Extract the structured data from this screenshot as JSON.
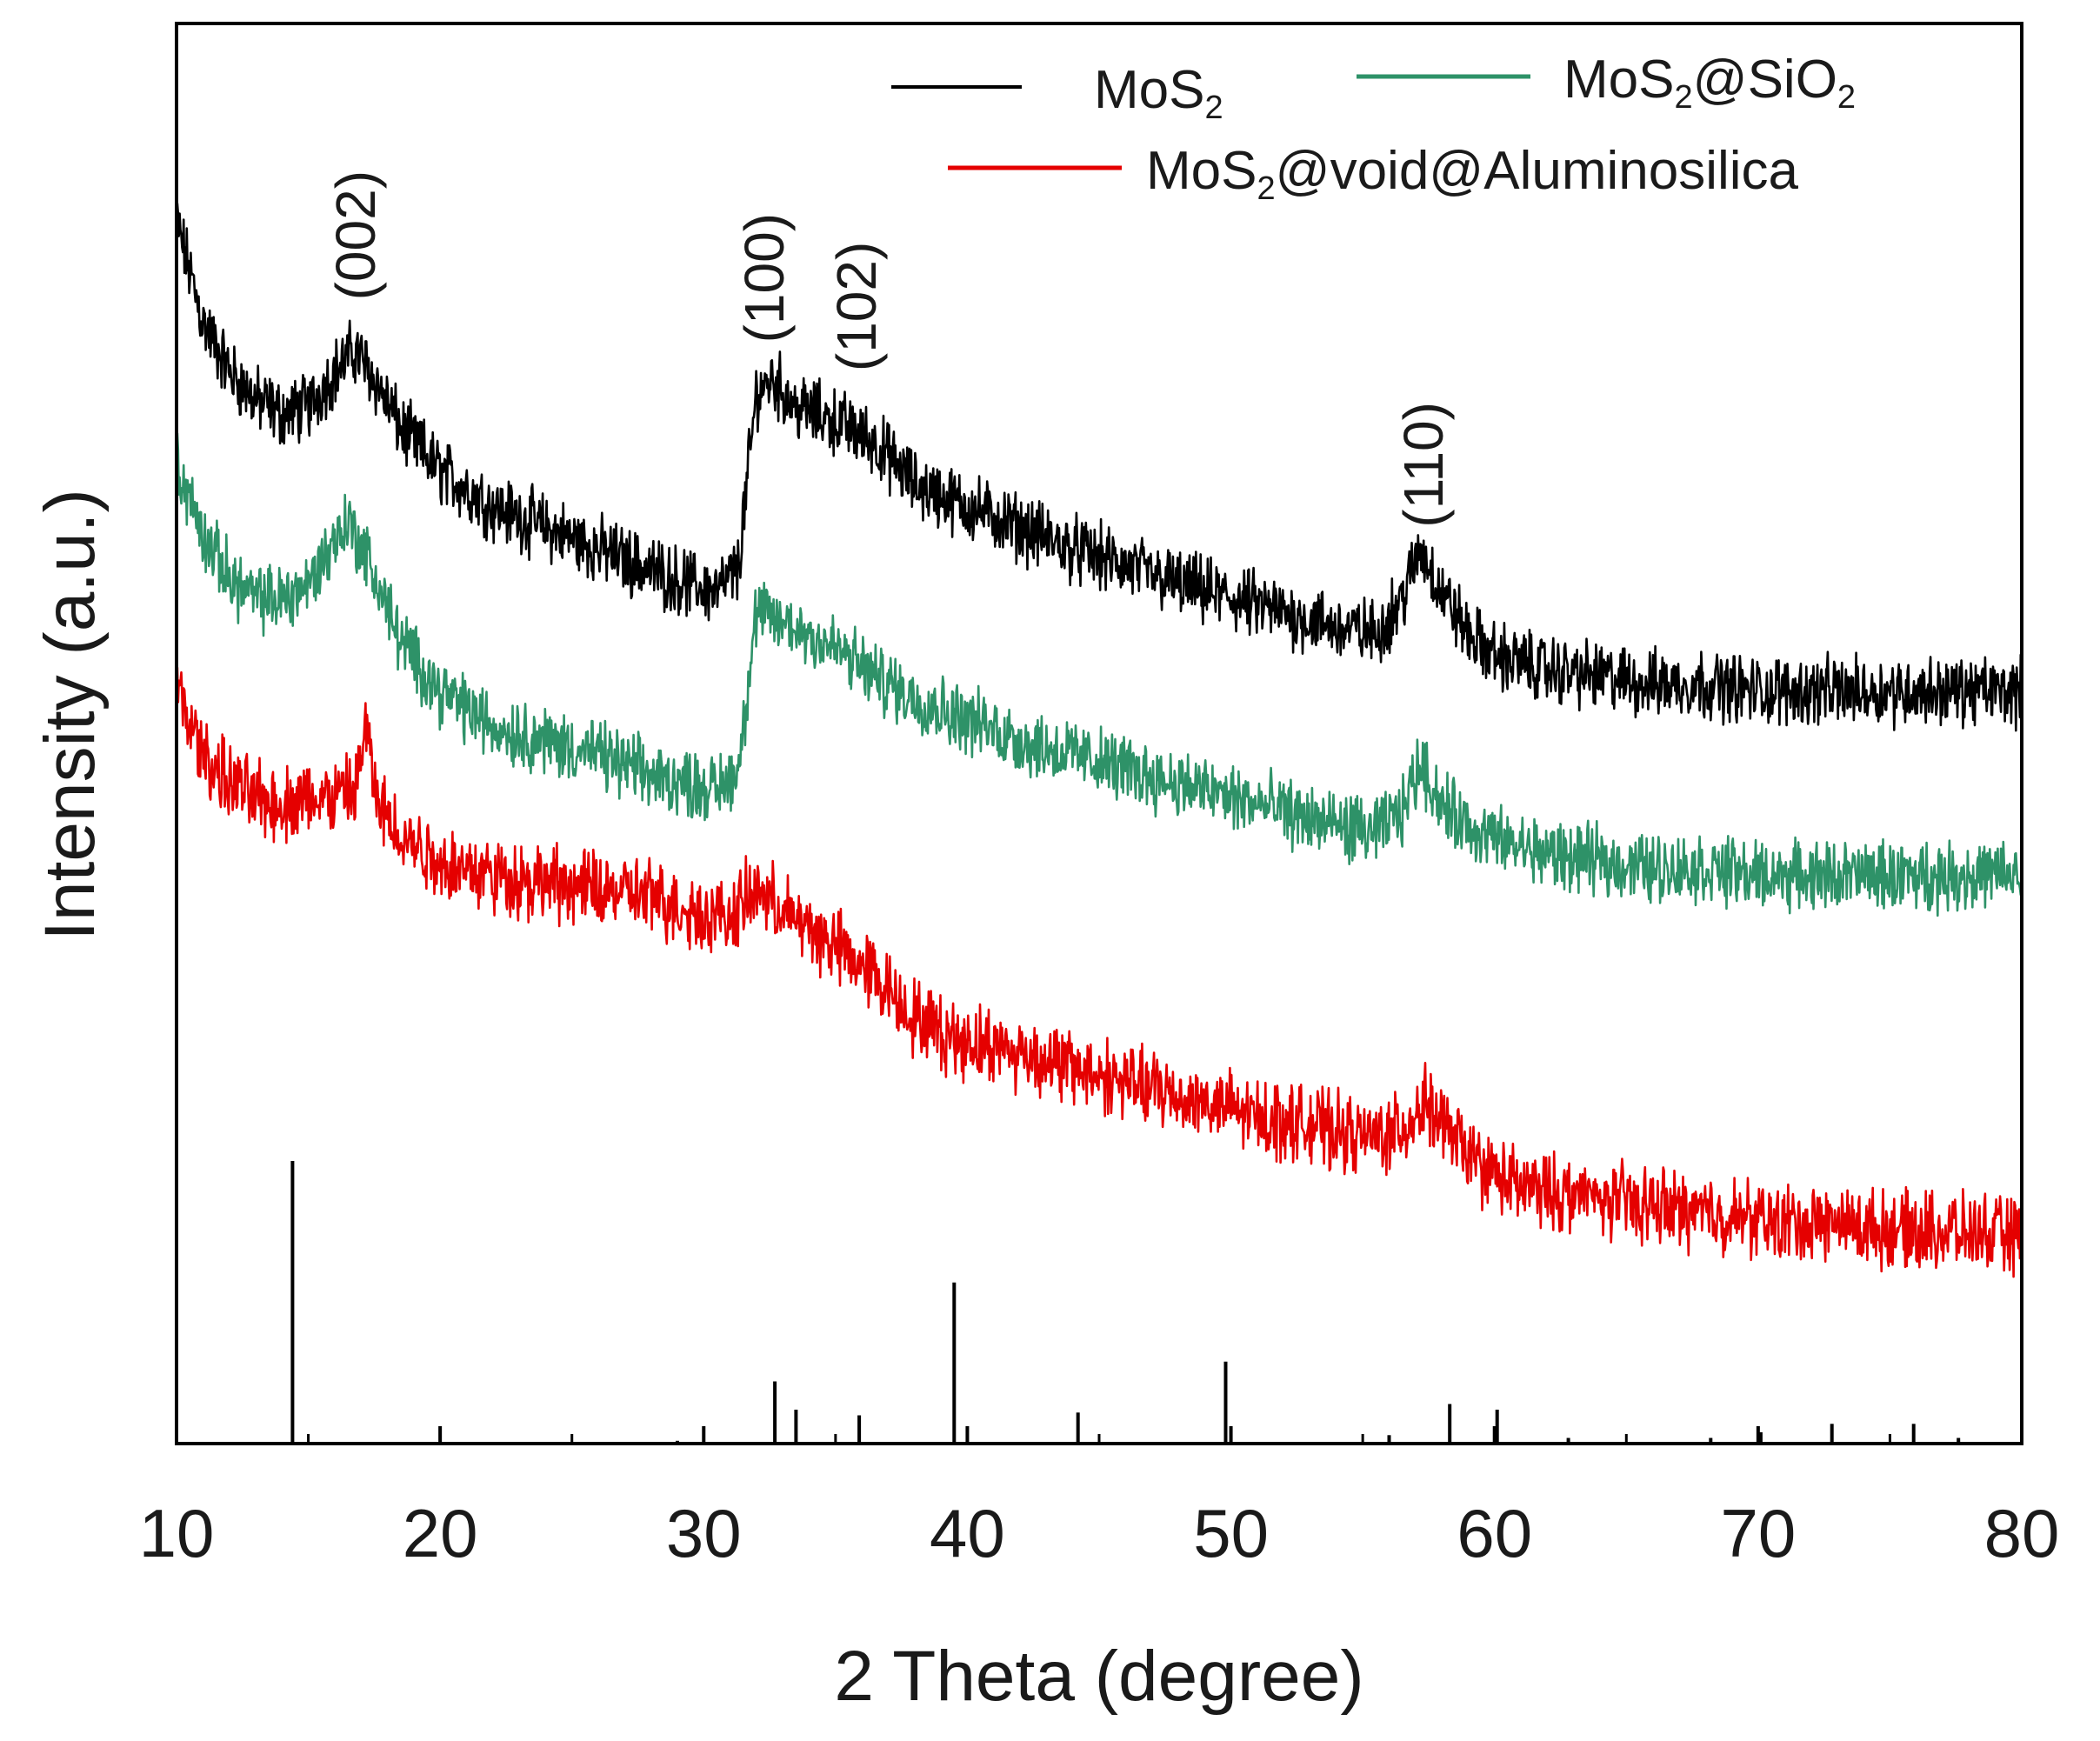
{
  "chart_data": {
    "type": "line",
    "xlabel": "2 Theta (degree)",
    "ylabel": "Intensity (a.u.)",
    "xlim": [
      10,
      80
    ],
    "xticks": [
      "10",
      "20",
      "30",
      "40",
      "50",
      "60",
      "70",
      "80"
    ],
    "y_ticks_shown": false,
    "legend_position": "top-right",
    "legend": [
      {
        "series": 0,
        "base": "MoS",
        "sub1": "2",
        "mid": "",
        "sub2": ""
      },
      {
        "series": 1,
        "base": "MoS",
        "sub1": "2",
        "mid": "@SiO",
        "sub2": "2"
      },
      {
        "series": 2,
        "base": "MoS",
        "sub1": "2",
        "mid": "@void@Aluminosilica",
        "sub2": ""
      }
    ],
    "series": [
      {
        "name": "MoS2",
        "color": "#000000",
        "x": [
          10,
          11,
          12,
          13,
          14,
          15,
          16,
          16.8,
          17.5,
          18.5,
          20,
          22,
          24,
          26,
          28,
          29.5,
          30.5,
          31.3,
          32.0,
          32.6,
          33.5,
          35.0,
          36.5,
          38,
          40,
          42,
          44,
          46,
          48,
          50,
          52,
          54,
          55.5,
          56.5,
          57.2,
          58.0,
          59,
          60,
          62,
          64,
          66,
          68,
          70,
          72,
          74,
          76,
          78,
          80
        ],
        "y": [
          86.0,
          79.0,
          75.5,
          73.5,
          72.5,
          73.0,
          75.5,
          77.0,
          75.0,
          71.5,
          68.5,
          66.0,
          64.5,
          63.0,
          61.5,
          60.5,
          60.0,
          61.5,
          74.0,
          75.0,
          73.0,
          72.0,
          70.5,
          67.5,
          66.0,
          64.5,
          63.0,
          61.8,
          60.5,
          59.5,
          58.5,
          57.5,
          57.0,
          59.5,
          63.0,
          60.0,
          57.0,
          55.5,
          54.5,
          54.0,
          53.5,
          53.5,
          53.0,
          53.0,
          53.0,
          53.0,
          53.0,
          53.0
        ],
        "noise": 1.8
      },
      {
        "name": "MoS2@SiO2",
        "color": "#2e9268",
        "x": [
          10,
          11,
          12,
          13,
          14,
          15,
          15.8,
          16.5,
          17.2,
          18.5,
          20,
          22,
          24,
          26,
          28,
          29.5,
          30.5,
          31.3,
          32.0,
          32.6,
          33.5,
          35,
          36.5,
          38,
          40,
          42,
          44,
          46,
          48,
          50,
          52,
          54,
          55.5,
          56.5,
          57.2,
          58.0,
          59,
          60,
          62,
          64,
          66,
          68,
          70,
          72,
          74,
          76,
          78,
          80
        ],
        "y": [
          69.0,
          64.0,
          61.0,
          59.5,
          59.5,
          60.5,
          63.0,
          65.0,
          62.5,
          56.5,
          53.0,
          50.5,
          49.5,
          48.5,
          47.0,
          46.5,
          46.0,
          47.5,
          58.5,
          58.0,
          57.5,
          56.0,
          54.0,
          52.5,
          51.0,
          49.5,
          48.5,
          47.5,
          46.5,
          45.5,
          44.5,
          43.5,
          43.0,
          44.5,
          48.0,
          45.0,
          43.5,
          42.5,
          41.5,
          41.0,
          40.5,
          40.5,
          40.0,
          40.0,
          40.0,
          40.0,
          40.0,
          40.0
        ],
        "noise": 1.8
      },
      {
        "name": "MoS2@void@Aluminosilica",
        "color": "#e50000",
        "x": [
          10,
          11,
          12,
          13,
          14,
          15,
          16,
          16.8,
          17.2,
          17.6,
          18.5,
          20,
          22,
          24,
          26,
          28,
          29.5,
          31,
          32.0,
          33,
          35,
          36.5,
          38,
          39.5,
          41,
          43,
          45,
          47,
          49,
          51,
          53,
          55,
          56.5,
          57.3,
          58.2,
          59.5,
          61,
          63,
          65,
          67,
          69,
          71,
          73,
          75,
          77,
          80
        ],
        "y": [
          53.0,
          48.5,
          46.5,
          45.5,
          45.0,
          45.5,
          45.5,
          46.0,
          50.5,
          45.0,
          43.0,
          41.0,
          40.0,
          39.5,
          39.0,
          38.5,
          37.5,
          37.0,
          39.0,
          37.5,
          35.0,
          33.0,
          30.0,
          28.5,
          28.0,
          27.0,
          26.0,
          25.0,
          24.0,
          23.0,
          22.5,
          21.5,
          22.0,
          24.0,
          22.0,
          19.5,
          18.0,
          17.5,
          17.0,
          16.5,
          16.0,
          15.5,
          15.5,
          15.0,
          15.0,
          14.5
        ],
        "noise": 2.0
      }
    ],
    "peak_labels": [
      {
        "label": "(002)",
        "x": 16.8,
        "y": 80.5
      },
      {
        "label": "(100)",
        "x": 32.3,
        "y": 77.5
      },
      {
        "label": "(102)",
        "x": 35.8,
        "y": 75.5
      },
      {
        "label": "(110)",
        "x": 57.3,
        "y": 64.5
      }
    ],
    "reference_pattern": {
      "x": [
        14.4,
        29.0,
        32.7,
        33.5,
        35.9,
        39.5,
        44.2,
        49.8,
        56.0,
        58.3,
        60.1,
        62.8,
        68.2,
        70.1,
        72.8,
        75.9,
        77.6
      ],
      "intensity": [
        100,
        1,
        22,
        12,
        10,
        57,
        11,
        29,
        3,
        14,
        12,
        2,
        2,
        4,
        7,
        7,
        2
      ]
    }
  }
}
